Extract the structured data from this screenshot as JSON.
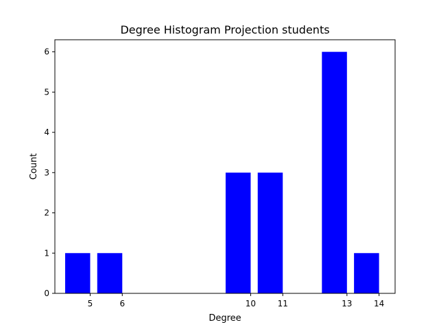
{
  "chart_data": {
    "type": "bar",
    "title": "Degree Histogram Projection students",
    "xlabel": "Degree",
    "ylabel": "Count",
    "bars": [
      {
        "x": 5,
        "value": 1
      },
      {
        "x": 6,
        "value": 1
      },
      {
        "x": 10,
        "value": 3
      },
      {
        "x": 11,
        "value": 3
      },
      {
        "x": 13,
        "value": 6
      },
      {
        "x": 14,
        "value": 1
      }
    ],
    "x_ticks": [
      "5",
      "6",
      "10",
      "11",
      "13",
      "14"
    ],
    "y_ticks": [
      "0",
      "1",
      "2",
      "3",
      "4",
      "5",
      "6"
    ],
    "xlim": [
      3.9,
      14.5
    ],
    "ylim": [
      0,
      6.3
    ],
    "bar_color": "#0000ff",
    "grid": false,
    "legend": false
  }
}
